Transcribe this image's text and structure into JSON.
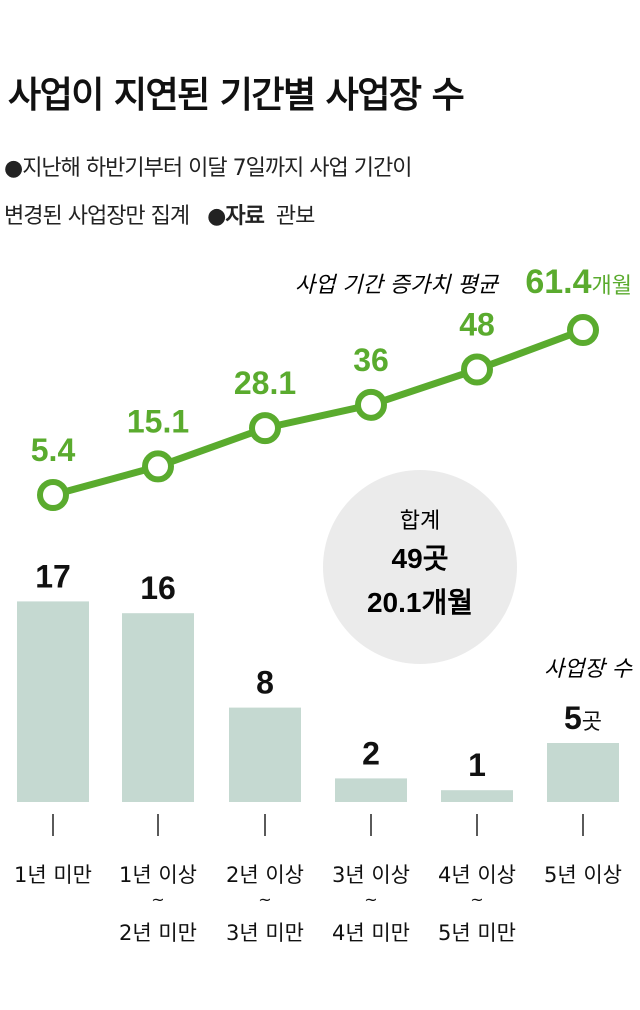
{
  "title": "사업이 지연된 기간별 사업장 수",
  "notes": {
    "line1": "●지난해 하반기부터 이달 7일까지 사업 기간이",
    "line2": "변경된 사업장만 집계",
    "source_label": "●자료",
    "source": "관보"
  },
  "colors": {
    "line": "#5aab2e",
    "bar": "#c5d9d1",
    "total_circle": "#ebebeb",
    "text": "#111111"
  },
  "total": {
    "label": "합계",
    "count": "49곳",
    "months": "20.1개월"
  },
  "chart_data": [
    {
      "type": "line",
      "title": "사업 기간 증가치 평균",
      "unit": "개월",
      "categories": [
        "1년 미만",
        "1년 이상 ~ 2년 미만",
        "2년 이상 ~ 3년 미만",
        "3년 이상 ~ 4년 미만",
        "4년 이상 ~ 5년 미만",
        "5년 이상"
      ],
      "values": [
        5.4,
        15.1,
        28.1,
        36,
        48,
        61.4
      ],
      "labels": [
        "5.4",
        "15.1",
        "28.1",
        "36",
        "48",
        "61.4"
      ]
    },
    {
      "type": "bar",
      "title": "사업장 수",
      "unit": "곳",
      "categories": [
        "1년 미만",
        "1년 이상 ~ 2년 미만",
        "2년 이상 ~ 3년 미만",
        "3년 이상 ~ 4년 미만",
        "4년 이상 ~ 5년 미만",
        "5년 이상"
      ],
      "values": [
        17,
        16,
        8,
        2,
        1,
        5
      ],
      "labels": [
        "17",
        "16",
        "8",
        "2",
        "1",
        "5"
      ]
    }
  ],
  "axis": {
    "line1": [
      "1년 미만",
      "1년 이상",
      "2년 이상",
      "3년 이상",
      "4년 이상",
      "5년 이상"
    ],
    "tilde": "~",
    "line2": [
      "",
      "2년 미만",
      "3년 미만",
      "4년 미만",
      "5년 미만",
      ""
    ]
  }
}
